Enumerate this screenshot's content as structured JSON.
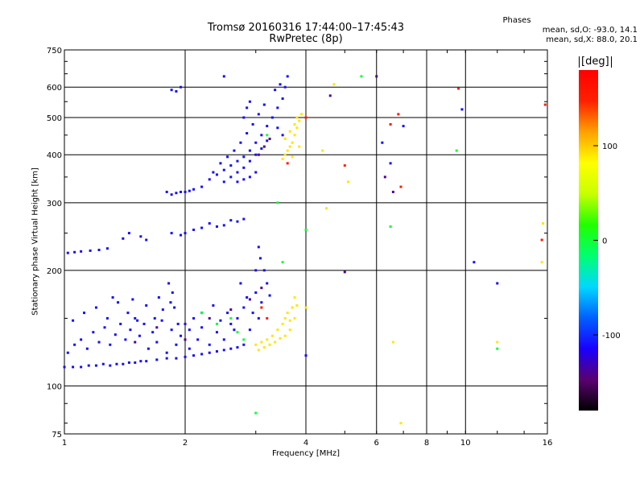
{
  "chart_data": {
    "type": "scatter",
    "title": "Tromsø 20160316 17:44:00–17:45:43",
    "subtitle": "RwPretec (8p)",
    "xlabel": "Frequency [MHz]",
    "ylabel": "Stationary phase Virtual Height [km]",
    "x_scale": "log",
    "y_scale": "log",
    "xlim": [
      1,
      16
    ],
    "ylim": [
      75,
      750
    ],
    "x_ticks": [
      "1",
      "2",
      "4",
      "6",
      "8",
      "10",
      "16"
    ],
    "y_ticks": [
      "75",
      "100",
      "200",
      "300",
      "400",
      "500",
      "600",
      "750"
    ],
    "grid": true,
    "phase_stats": {
      "heading": "Phases",
      "o_line": "mean, sd,O: -93.0, 14.1",
      "x_line": "mean, sd,X:  88.0, 20.1"
    },
    "colorbar": {
      "label": "[deg]",
      "ticks": [
        "100",
        "0",
        "-100"
      ],
      "tick_values": [
        100,
        0,
        -100
      ],
      "range": [
        -180,
        180
      ],
      "colors": [
        "#000000",
        "#5a0070",
        "#1a00ff",
        "#0060ff",
        "#00d8ff",
        "#00ff70",
        "#20ff00",
        "#c8ff00",
        "#ffff00",
        "#ffa000",
        "#ff2000",
        "#ff0000"
      ]
    },
    "series": [
      {
        "phase": -110,
        "points": [
          [
            1.0,
            112
          ],
          [
            1.05,
            112
          ],
          [
            1.1,
            112
          ],
          [
            1.15,
            113
          ],
          [
            1.2,
            113
          ],
          [
            1.25,
            114
          ],
          [
            1.3,
            113
          ],
          [
            1.35,
            114
          ],
          [
            1.4,
            114
          ],
          [
            1.45,
            115
          ],
          [
            1.5,
            115
          ],
          [
            1.55,
            116
          ],
          [
            1.6,
            116
          ],
          [
            1.7,
            117
          ],
          [
            1.8,
            118
          ],
          [
            1.9,
            118
          ],
          [
            2.0,
            119
          ],
          [
            2.1,
            120
          ],
          [
            2.2,
            121
          ],
          [
            2.3,
            122
          ],
          [
            2.4,
            123
          ],
          [
            2.5,
            124
          ],
          [
            2.6,
            125
          ],
          [
            2.7,
            126
          ],
          [
            2.8,
            128
          ],
          [
            1.02,
            122
          ],
          [
            1.06,
            128
          ],
          [
            1.1,
            132
          ],
          [
            1.14,
            125
          ],
          [
            1.18,
            138
          ],
          [
            1.22,
            130
          ],
          [
            1.26,
            142
          ],
          [
            1.3,
            128
          ],
          [
            1.34,
            136
          ],
          [
            1.38,
            145
          ],
          [
            1.42,
            132
          ],
          [
            1.46,
            140
          ],
          [
            1.5,
            150
          ],
          [
            1.54,
            135
          ],
          [
            1.58,
            145
          ],
          [
            1.62,
            125
          ],
          [
            1.66,
            138
          ],
          [
            1.7,
            130
          ],
          [
            1.75,
            148
          ],
          [
            1.8,
            122
          ],
          [
            1.85,
            140
          ],
          [
            1.9,
            128
          ],
          [
            1.95,
            135
          ],
          [
            2.0,
            145
          ],
          [
            2.05,
            125
          ],
          [
            2.1,
            150
          ],
          [
            2.15,
            132
          ],
          [
            2.2,
            142
          ],
          [
            2.3,
            128
          ],
          [
            2.4,
            138
          ],
          [
            2.5,
            132
          ],
          [
            2.6,
            145
          ],
          [
            2.7,
            150
          ],
          [
            2.8,
            160
          ],
          [
            1.05,
            148
          ],
          [
            1.12,
            155
          ],
          [
            1.2,
            160
          ],
          [
            1.28,
            150
          ],
          [
            1.36,
            165
          ],
          [
            1.44,
            155
          ],
          [
            1.52,
            148
          ],
          [
            1.6,
            162
          ],
          [
            1.68,
            150
          ],
          [
            1.76,
            158
          ],
          [
            1.84,
            165
          ],
          [
            1.92,
            145
          ],
          [
            2.05,
            140
          ],
          [
            2.2,
            155
          ],
          [
            2.35,
            162
          ],
          [
            2.45,
            148
          ],
          [
            2.55,
            155
          ],
          [
            2.65,
            140
          ],
          [
            1.32,
            170
          ],
          [
            1.48,
            168
          ],
          [
            1.72,
            170
          ],
          [
            1.82,
            185
          ],
          [
            1.86,
            175
          ],
          [
            1.88,
            160
          ],
          [
            2.9,
            140
          ],
          [
            2.95,
            155
          ],
          [
            3.0,
            175
          ],
          [
            3.05,
            150
          ],
          [
            3.1,
            165
          ],
          [
            3.15,
            200
          ],
          [
            3.2,
            185
          ],
          [
            3.25,
            172
          ],
          [
            3.0,
            200
          ],
          [
            3.05,
            230
          ],
          [
            3.08,
            215
          ],
          [
            2.85,
            170
          ],
          [
            2.75,
            185
          ],
          [
            1.02,
            222
          ],
          [
            1.06,
            223
          ],
          [
            1.1,
            224
          ],
          [
            1.16,
            225
          ],
          [
            1.22,
            226
          ],
          [
            1.28,
            228
          ],
          [
            1.4,
            242
          ],
          [
            1.45,
            250
          ],
          [
            1.55,
            245
          ],
          [
            1.6,
            240
          ],
          [
            1.85,
            250
          ],
          [
            1.95,
            247
          ],
          [
            2.0,
            250
          ],
          [
            2.1,
            255
          ],
          [
            2.2,
            258
          ],
          [
            2.3,
            265
          ],
          [
            2.4,
            260
          ],
          [
            2.5,
            262
          ],
          [
            2.6,
            270
          ],
          [
            2.7,
            268
          ],
          [
            2.8,
            272
          ],
          [
            1.8,
            320
          ],
          [
            1.85,
            315
          ],
          [
            1.9,
            318
          ],
          [
            1.95,
            320
          ],
          [
            2.0,
            320
          ],
          [
            2.05,
            322
          ],
          [
            2.1,
            325
          ],
          [
            2.2,
            330
          ],
          [
            2.3,
            345
          ],
          [
            2.4,
            355
          ],
          [
            2.5,
            365
          ],
          [
            2.6,
            375
          ],
          [
            2.7,
            385
          ],
          [
            2.8,
            395
          ],
          [
            2.9,
            410
          ],
          [
            3.0,
            430
          ],
          [
            3.1,
            450
          ],
          [
            3.2,
            475
          ],
          [
            3.3,
            500
          ],
          [
            3.4,
            530
          ],
          [
            3.5,
            560
          ],
          [
            3.55,
            600
          ],
          [
            3.6,
            640
          ],
          [
            2.35,
            360
          ],
          [
            2.45,
            380
          ],
          [
            2.55,
            395
          ],
          [
            2.65,
            410
          ],
          [
            2.75,
            430
          ],
          [
            2.85,
            455
          ],
          [
            2.95,
            480
          ],
          [
            3.05,
            510
          ],
          [
            3.15,
            540
          ],
          [
            2.5,
            340
          ],
          [
            2.6,
            350
          ],
          [
            2.7,
            360
          ],
          [
            2.8,
            370
          ],
          [
            2.9,
            385
          ],
          [
            3.0,
            400
          ],
          [
            3.1,
            415
          ],
          [
            3.2,
            435
          ],
          [
            2.7,
            340
          ],
          [
            2.8,
            345
          ],
          [
            2.9,
            350
          ],
          [
            3.0,
            360
          ],
          [
            2.8,
            500
          ],
          [
            2.85,
            530
          ],
          [
            2.9,
            550
          ],
          [
            3.35,
            590
          ],
          [
            3.45,
            610
          ],
          [
            3.5,
            450
          ],
          [
            3.4,
            470
          ],
          [
            1.85,
            590
          ],
          [
            1.9,
            585
          ],
          [
            1.95,
            600
          ],
          [
            2.5,
            640
          ],
          [
            6.2,
            430
          ],
          [
            6.5,
            380
          ],
          [
            12.0,
            185
          ],
          [
            10.5,
            210
          ],
          [
            4.0,
            120
          ],
          [
            9.8,
            525
          ],
          [
            7.0,
            475
          ]
        ]
      },
      {
        "phase": -140,
        "points": [
          [
            1.5,
            130
          ],
          [
            1.7,
            142
          ],
          [
            2.0,
            132
          ],
          [
            2.3,
            150
          ],
          [
            2.6,
            158
          ],
          [
            2.9,
            168
          ],
          [
            3.1,
            180
          ],
          [
            3.05,
            400
          ],
          [
            3.15,
            420
          ],
          [
            3.25,
            440
          ],
          [
            4.6,
            570
          ],
          [
            6.0,
            640
          ],
          [
            6.3,
            350
          ],
          [
            6.6,
            320
          ],
          [
            5.0,
            198
          ]
        ]
      },
      {
        "phase": 0,
        "points": [
          [
            2.2,
            155
          ],
          [
            2.4,
            145
          ],
          [
            2.6,
            150
          ],
          [
            2.7,
            138
          ],
          [
            2.8,
            132
          ],
          [
            3.0,
            85
          ],
          [
            3.2,
            450
          ],
          [
            3.5,
            210
          ],
          [
            4.0,
            255
          ],
          [
            6.5,
            260
          ],
          [
            9.5,
            410
          ],
          [
            12.0,
            125
          ],
          [
            3.4,
            300
          ],
          [
            5.5,
            640
          ]
        ]
      },
      {
        "phase": 90,
        "points": [
          [
            3.0,
            128
          ],
          [
            3.05,
            124
          ],
          [
            3.1,
            130
          ],
          [
            3.15,
            126
          ],
          [
            3.2,
            132
          ],
          [
            3.25,
            128
          ],
          [
            3.3,
            135
          ],
          [
            3.35,
            130
          ],
          [
            3.4,
            140
          ],
          [
            3.45,
            133
          ],
          [
            3.5,
            145
          ],
          [
            3.55,
            150
          ],
          [
            3.6,
            155
          ],
          [
            3.65,
            148
          ],
          [
            3.7,
            160
          ],
          [
            3.75,
            170
          ],
          [
            3.8,
            162
          ],
          [
            3.55,
            135
          ],
          [
            3.65,
            140
          ],
          [
            3.75,
            150
          ],
          [
            3.5,
            390
          ],
          [
            3.55,
            400
          ],
          [
            3.6,
            410
          ],
          [
            3.65,
            420
          ],
          [
            3.7,
            430
          ],
          [
            3.75,
            450
          ],
          [
            3.8,
            470
          ],
          [
            3.85,
            490
          ],
          [
            3.9,
            510
          ],
          [
            3.55,
            440
          ],
          [
            3.65,
            460
          ],
          [
            3.75,
            480
          ],
          [
            3.8,
            500
          ],
          [
            3.7,
            395
          ],
          [
            3.85,
            420
          ],
          [
            4.7,
            610
          ],
          [
            4.4,
            410
          ],
          [
            6.6,
            130
          ],
          [
            6.9,
            80
          ],
          [
            12.0,
            130
          ],
          [
            15.5,
            210
          ],
          [
            15.6,
            265
          ],
          [
            4.0,
            160
          ],
          [
            5.1,
            340
          ],
          [
            4.5,
            290
          ]
        ]
      },
      {
        "phase": 150,
        "points": [
          [
            3.1,
            160
          ],
          [
            3.2,
            150
          ],
          [
            3.6,
            380
          ],
          [
            4.0,
            500
          ],
          [
            5.0,
            375
          ],
          [
            6.5,
            480
          ],
          [
            6.8,
            510
          ],
          [
            9.6,
            595
          ],
          [
            15.8,
            540
          ],
          [
            15.5,
            240
          ],
          [
            6.9,
            330
          ]
        ]
      }
    ]
  }
}
